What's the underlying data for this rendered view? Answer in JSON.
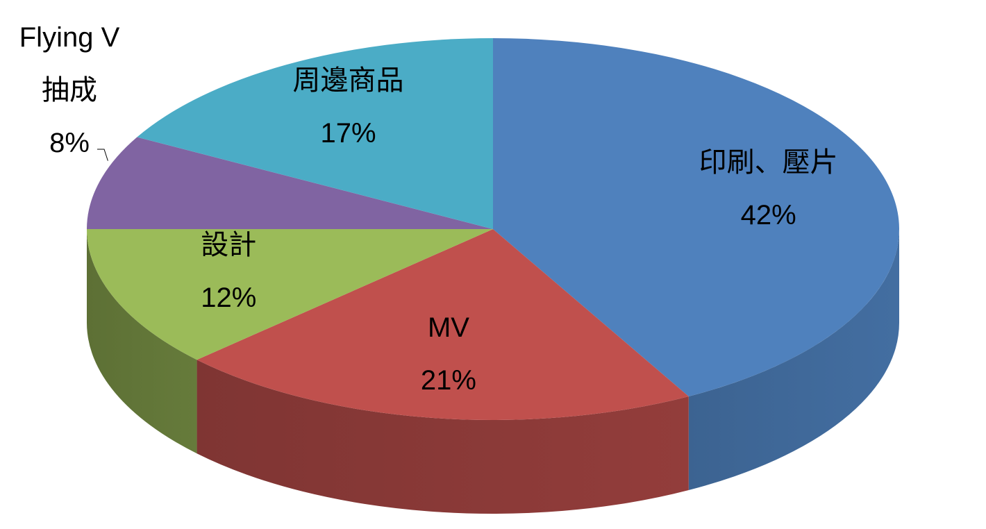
{
  "chart_data": {
    "type": "pie",
    "categories": [
      "印刷、壓片",
      "MV",
      "設計",
      "Flying V 抽成",
      "周邊商品"
    ],
    "values": [
      42,
      21,
      12,
      8,
      17
    ],
    "value_labels": [
      "42%",
      "21%",
      "12%",
      "8%",
      "17%"
    ],
    "colors": [
      "#4f81bd",
      "#c0504d",
      "#9bbb59",
      "#8064a2",
      "#4bacc6"
    ]
  }
}
